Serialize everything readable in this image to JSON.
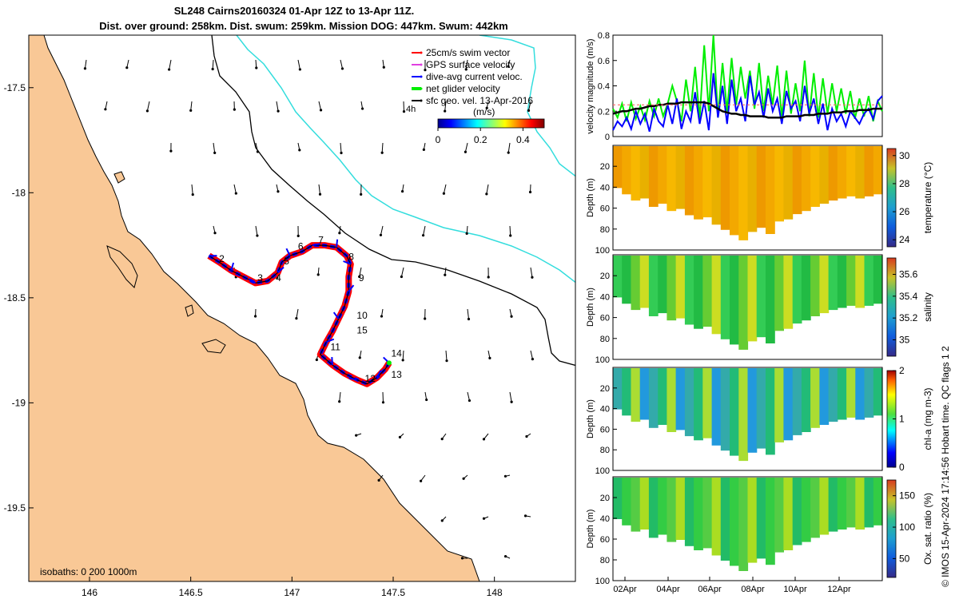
{
  "header": {
    "title_line1": "SL248 Cairns20160324 01-Apr 12Z to 13-Apr 11Z.",
    "title_line2": "Dist. over ground: 258km. Dist. swum: 259km. Mission DOG: 447km. Swum: 442km"
  },
  "footer": {
    "credit": "© IMOS 15-Apr-2024 17:14:56 Hobart time. QC flags 1  2"
  },
  "colors": {
    "land": "#f9c896",
    "sea": "#ffffff",
    "coastline": "#000000",
    "isobath_200": "#000000",
    "isobath_1000": "#33dddd",
    "swim": "#ff0000",
    "gps": "#e040e0",
    "dive_avg": "#0000ff",
    "net_glider": "#00ee00",
    "sfc_geo": "#000000"
  },
  "map": {
    "lon_range": [
      145.7,
      148.4
    ],
    "lat_range": [
      -19.85,
      -17.25
    ],
    "lon_ticks": [
      146,
      146.5,
      147,
      147.5,
      148
    ],
    "lon_tick_labels": [
      "146",
      "146.5",
      "147",
      "147.5",
      "148"
    ],
    "lat_ticks": [
      -17.5,
      -18,
      -18.5,
      -19,
      -19.5
    ],
    "lat_tick_labels": [
      "-17.5",
      "-18",
      "-18.5",
      "-19",
      "-19.5"
    ],
    "isobaths_label": "isobaths: 0   200  1000m",
    "time_scale_label": "4h",
    "legend": [
      {
        "label": "25cm/s swim vector",
        "color": "#ff0000"
      },
      {
        "label": "GPS surface velocity",
        "color": "#e040e0"
      },
      {
        "label": "dive-avg current veloc.",
        "color": "#0000ff"
      },
      {
        "label": "net glider velocity",
        "color": "#00ee00"
      },
      {
        "label": "sfc geo. vel. 13-Apr-2016",
        "color": "#000000"
      }
    ],
    "colorbar": {
      "label": "(m/s)",
      "min": 0,
      "max": 0.5,
      "ticks": [
        0,
        0.2,
        0.4
      ],
      "tick_labels": [
        "0",
        "0.2",
        "0.4"
      ]
    },
    "track": [
      [
        146.59,
        -18.3
      ],
      [
        146.64,
        -18.33
      ],
      [
        146.7,
        -18.37
      ],
      [
        146.76,
        -18.4
      ],
      [
        146.82,
        -18.43
      ],
      [
        146.88,
        -18.42
      ],
      [
        146.93,
        -18.38
      ],
      [
        146.95,
        -18.33
      ],
      [
        146.99,
        -18.3
      ],
      [
        147.05,
        -18.28
      ],
      [
        147.1,
        -18.25
      ],
      [
        147.16,
        -18.25
      ],
      [
        147.22,
        -18.26
      ],
      [
        147.27,
        -18.3
      ],
      [
        147.29,
        -18.34
      ],
      [
        147.28,
        -18.4
      ],
      [
        147.28,
        -18.47
      ],
      [
        147.26,
        -18.54
      ],
      [
        147.23,
        -18.6
      ],
      [
        147.2,
        -18.66
      ],
      [
        147.17,
        -18.71
      ],
      [
        147.14,
        -18.77
      ],
      [
        147.2,
        -18.82
      ],
      [
        147.26,
        -18.86
      ],
      [
        147.32,
        -18.89
      ],
      [
        147.37,
        -18.91
      ],
      [
        147.42,
        -18.88
      ],
      [
        147.46,
        -18.84
      ],
      [
        147.48,
        -18.81
      ]
    ],
    "day_labels": [
      {
        "text": "2",
        "lon": 146.64,
        "lat": -18.33
      },
      {
        "text": "3",
        "lon": 146.83,
        "lat": -18.42
      },
      {
        "text": "4",
        "lon": 146.92,
        "lat": -18.42
      },
      {
        "text": "5",
        "lon": 146.96,
        "lat": -18.34
      },
      {
        "text": "6",
        "lon": 147.03,
        "lat": -18.27
      },
      {
        "text": "7",
        "lon": 147.13,
        "lat": -18.24
      },
      {
        "text": "8",
        "lon": 147.28,
        "lat": -18.32
      },
      {
        "text": "9",
        "lon": 147.33,
        "lat": -18.42
      },
      {
        "text": "10",
        "lon": 147.32,
        "lat": -18.6
      },
      {
        "text": "15",
        "lon": 147.32,
        "lat": -18.67
      },
      {
        "text": "11",
        "lon": 147.19,
        "lat": -18.75
      },
      {
        "text": "12",
        "lon": 147.36,
        "lat": -18.9
      },
      {
        "text": "13",
        "lon": 147.49,
        "lat": -18.88
      },
      {
        "text": "14",
        "lon": 147.49,
        "lat": -18.78
      }
    ]
  },
  "chart_data": [
    {
      "type": "line",
      "ylabel": "velocity magnitude (m/s)",
      "ylim": [
        0,
        0.8
      ],
      "yticks": [
        0,
        0.2,
        0.4,
        0.6,
        0.8
      ],
      "ytick_labels": [
        "0",
        "0.2",
        "0.4",
        "0.6",
        "0.8"
      ],
      "series": [
        {
          "color": "#00ee00",
          "values": [
            0.22,
            0.15,
            0.26,
            0.12,
            0.27,
            0.14,
            0.24,
            0.13,
            0.28,
            0.16,
            0.3,
            0.16,
            0.26,
            0.4,
            0.28,
            0.12,
            0.45,
            0.2,
            0.55,
            0.14,
            0.72,
            0.2,
            0.8,
            0.15,
            0.58,
            0.2,
            0.62,
            0.25,
            0.55,
            0.3,
            0.52,
            0.22,
            0.58,
            0.2,
            0.48,
            0.25,
            0.56,
            0.15,
            0.52,
            0.18,
            0.42,
            0.2,
            0.6,
            0.16,
            0.5,
            0.15,
            0.46,
            0.18,
            0.42,
            0.2,
            0.38,
            0.18,
            0.36,
            0.14,
            0.3,
            0.16,
            0.32,
            0.12,
            0.28,
            0.2
          ]
        },
        {
          "color": "#0000ff",
          "values": [
            0.05,
            0.12,
            0.08,
            0.15,
            0.06,
            0.2,
            0.1,
            0.18,
            0.04,
            0.22,
            0.12,
            0.08,
            0.25,
            0.1,
            0.3,
            0.06,
            0.2,
            0.12,
            0.35,
            0.1,
            0.28,
            0.05,
            0.5,
            0.15,
            0.4,
            0.1,
            0.45,
            0.2,
            0.3,
            0.12,
            0.48,
            0.25,
            0.35,
            0.15,
            0.38,
            0.2,
            0.3,
            0.1,
            0.36,
            0.22,
            0.28,
            0.12,
            0.4,
            0.18,
            0.3,
            0.1,
            0.26,
            0.05,
            0.22,
            0.12,
            0.18,
            0.08,
            0.2,
            0.15,
            0.1,
            0.18,
            0.22,
            0.14,
            0.28,
            0.32
          ]
        },
        {
          "color": "#000000",
          "values": [
            0.18,
            0.19,
            0.2,
            0.2,
            0.21,
            0.22,
            0.22,
            0.23,
            0.24,
            0.24,
            0.25,
            0.25,
            0.26,
            0.26,
            0.26,
            0.27,
            0.27,
            0.27,
            0.27,
            0.27,
            0.27,
            0.26,
            0.24,
            0.22,
            0.2,
            0.19,
            0.18,
            0.18,
            0.17,
            0.17,
            0.16,
            0.16,
            0.16,
            0.16,
            0.15,
            0.15,
            0.15,
            0.15,
            0.16,
            0.16,
            0.16,
            0.16,
            0.17,
            0.17,
            0.17,
            0.18,
            0.18,
            0.18,
            0.19,
            0.19,
            0.19,
            0.2,
            0.2,
            0.2,
            0.21,
            0.21,
            0.21,
            0.22,
            0.22,
            0.22
          ]
        },
        {
          "color": "#ff6666",
          "values": [
            0.25,
            0.25,
            0.25,
            0.25,
            0.25,
            0.25,
            0.25,
            0.25,
            0.25,
            0.25,
            0.25,
            0.25,
            0.25,
            0.25,
            0.25,
            0.25,
            0.25,
            0.25,
            0.25,
            0.25,
            0.25,
            0.25,
            0.25,
            0.25,
            0.25,
            0.25,
            0.25,
            0.25,
            0.25,
            0.25,
            0.25,
            0.25,
            0.25,
            0.25,
            0.25,
            0.25,
            0.25,
            0.25,
            0.25,
            0.25,
            0.25,
            0.25,
            0.25,
            0.25,
            0.25,
            0.25,
            0.25,
            0.25,
            0.25,
            0.25,
            0.25,
            0.25,
            0.25,
            0.25,
            0.25,
            0.25,
            0.25,
            0.25,
            0.25,
            0.25
          ]
        }
      ]
    },
    {
      "type": "heatmap",
      "ylabel": "Depth (m)",
      "cbar_label": "temperature (°C)",
      "clim": [
        23.5,
        30.5
      ],
      "cbar_ticks": [
        24,
        26,
        28,
        30
      ],
      "cbar_tick_labels": [
        "24",
        "26",
        "28",
        "30"
      ],
      "colors": [
        "#ee9900",
        "#f3a800",
        "#f7b800",
        "#e8b000"
      ],
      "ylim": [
        0,
        100
      ],
      "yticks": [
        20,
        40,
        60,
        80,
        100
      ],
      "ytick_labels": [
        "20",
        "40",
        "60",
        "80",
        "100"
      ],
      "max_depth": [
        40,
        46,
        52,
        50,
        58,
        55,
        62,
        60,
        66,
        70,
        68,
        75,
        80,
        85,
        90,
        82,
        78,
        84,
        72,
        70,
        65,
        62,
        58,
        55,
        52,
        50,
        48,
        50,
        48,
        46
      ]
    },
    {
      "type": "heatmap",
      "ylabel": "Depth (m)",
      "cbar_label": "salinity",
      "clim": [
        34.85,
        35.75
      ],
      "cbar_ticks": [
        35,
        35.2,
        35.4,
        35.6
      ],
      "cbar_tick_labels": [
        "35",
        "35.2",
        "35.4",
        "35.6"
      ],
      "colors": [
        "#33cc55",
        "#22bb44",
        "#66cc33",
        "#ccdd22"
      ],
      "ylim": [
        0,
        100
      ],
      "yticks": [
        20,
        40,
        60,
        80,
        100
      ],
      "ytick_labels": [
        "20",
        "40",
        "60",
        "80",
        "100"
      ],
      "max_depth": [
        40,
        46,
        52,
        50,
        58,
        55,
        62,
        60,
        66,
        70,
        68,
        75,
        80,
        85,
        90,
        82,
        78,
        84,
        72,
        70,
        65,
        62,
        58,
        55,
        52,
        50,
        48,
        50,
        48,
        46
      ]
    },
    {
      "type": "heatmap",
      "ylabel": "Depth (m)",
      "cbar_label": "chl-a (mg m-3)",
      "clim": [
        0,
        2
      ],
      "cbar_ticks": [
        0,
        1,
        2
      ],
      "cbar_tick_labels": [
        "0",
        "1",
        "2"
      ],
      "colors": [
        "#33aaaa",
        "#22bb77",
        "#aadd33",
        "#2299dd"
      ],
      "ylim": [
        0,
        100
      ],
      "yticks": [
        20,
        40,
        60,
        80,
        100
      ],
      "ytick_labels": [
        "20",
        "40",
        "60",
        "80",
        "100"
      ],
      "max_depth": [
        40,
        46,
        52,
        50,
        58,
        55,
        62,
        60,
        66,
        70,
        68,
        75,
        80,
        85,
        90,
        82,
        78,
        84,
        72,
        70,
        65,
        62,
        58,
        55,
        52,
        50,
        48,
        50,
        48,
        46
      ]
    },
    {
      "type": "heatmap",
      "ylabel": "Depth (m)",
      "cbar_label": "Ox. sat. ratio (%)",
      "clim": [
        20,
        175
      ],
      "cbar_ticks": [
        50,
        100,
        150
      ],
      "cbar_tick_labels": [
        "50",
        "100",
        "150"
      ],
      "colors": [
        "#22bb66",
        "#33cc44",
        "#55cc44",
        "#aadd22"
      ],
      "ylim": [
        0,
        100
      ],
      "yticks": [
        20,
        40,
        60,
        80,
        100
      ],
      "ytick_labels": [
        "20",
        "40",
        "60",
        "80",
        "100"
      ],
      "xticks": [
        "02Apr",
        "04Apr",
        "06Apr",
        "08Apr",
        "10Apr",
        "12Apr"
      ],
      "max_depth": [
        40,
        46,
        52,
        50,
        58,
        55,
        62,
        60,
        66,
        70,
        68,
        75,
        80,
        85,
        90,
        82,
        78,
        84,
        72,
        70,
        65,
        62,
        58,
        55,
        52,
        50,
        48,
        50,
        48,
        46
      ]
    }
  ]
}
